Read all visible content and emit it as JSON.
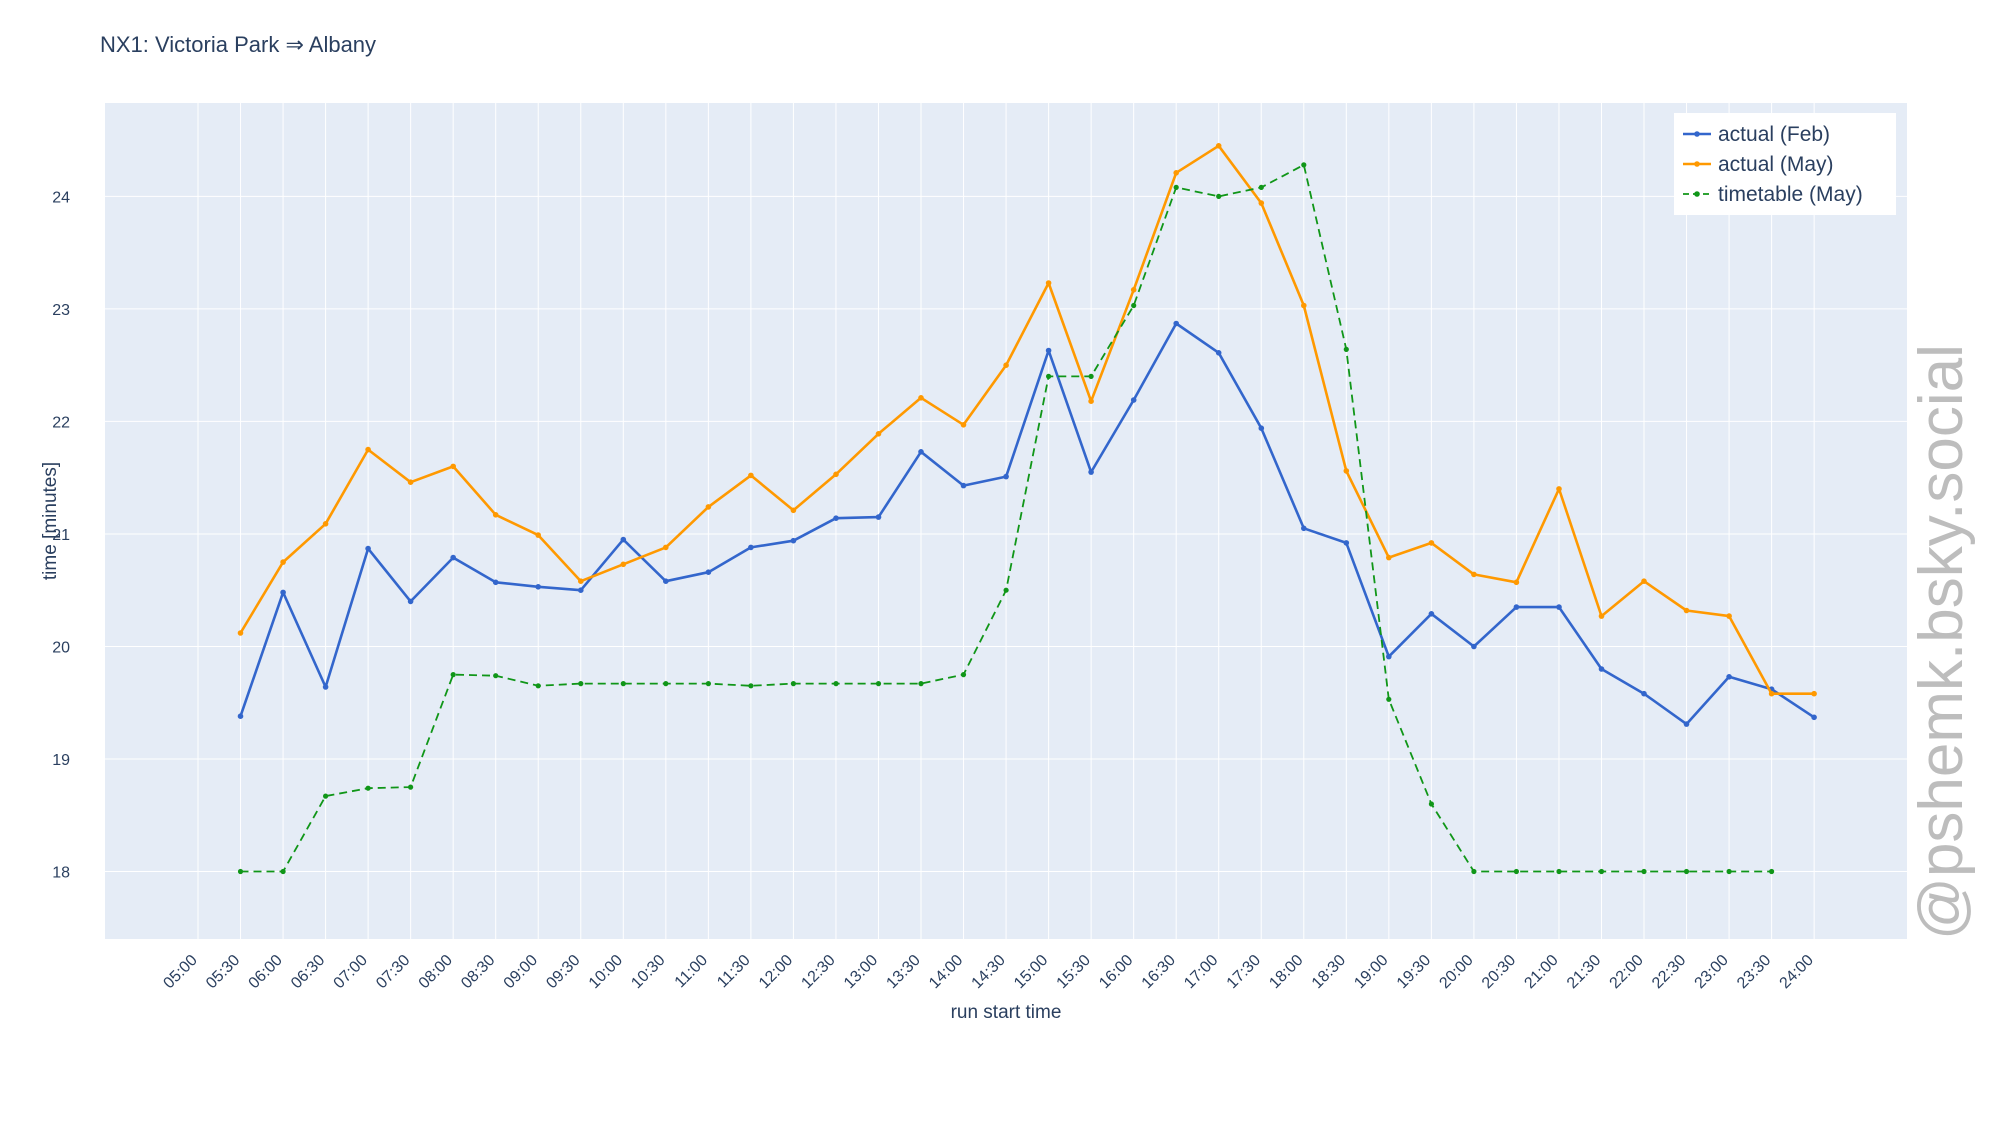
{
  "chart_data": {
    "type": "line",
    "title": "NX1: Victoria Park ⇒ Albany",
    "xlabel": "run start time",
    "ylabel": "time [minutes]",
    "ylim": [
      17.4,
      24.83
    ],
    "y_ticks": [
      18,
      19,
      20,
      21,
      22,
      23,
      24
    ],
    "grid": true,
    "legend_position": "top-right",
    "x_ticks": [
      "05:00",
      "05:30",
      "06:00",
      "06:30",
      "07:00",
      "07:30",
      "08:00",
      "08:30",
      "09:00",
      "09:30",
      "10:00",
      "10:30",
      "11:00",
      "11:30",
      "12:00",
      "12:30",
      "13:00",
      "13:30",
      "14:00",
      "14:30",
      "15:00",
      "15:30",
      "16:00",
      "16:30",
      "17:00",
      "17:30",
      "18:00",
      "18:30",
      "19:00",
      "19:30",
      "20:00",
      "20:30",
      "21:00",
      "21:30",
      "22:00",
      "22:30",
      "23:00",
      "23:30",
      "24:00"
    ],
    "series": [
      {
        "name": "actual (Feb)",
        "color": "#3366cc",
        "dash": "solid",
        "x": [
          "05:30",
          "06:00",
          "06:30",
          "07:00",
          "07:30",
          "08:00",
          "08:30",
          "09:00",
          "09:30",
          "10:00",
          "10:30",
          "11:00",
          "11:30",
          "12:00",
          "12:30",
          "13:00",
          "13:30",
          "14:00",
          "14:30",
          "15:00",
          "15:30",
          "16:00",
          "16:30",
          "17:00",
          "17:30",
          "18:00",
          "18:30",
          "19:00",
          "19:30",
          "20:00",
          "20:30",
          "21:00",
          "21:30",
          "22:00",
          "22:30",
          "23:00",
          "23:30",
          "24:00"
        ],
        "values": [
          19.38,
          20.48,
          19.64,
          20.87,
          20.4,
          20.79,
          20.57,
          20.53,
          20.5,
          20.95,
          20.58,
          20.66,
          20.88,
          20.94,
          21.14,
          21.15,
          21.73,
          21.43,
          21.51,
          22.63,
          21.55,
          22.19,
          22.87,
          22.61,
          21.94,
          21.05,
          20.92,
          19.91,
          20.29,
          20.0,
          20.35,
          20.35,
          19.8,
          19.58,
          19.31,
          19.73,
          19.62,
          19.37
        ]
      },
      {
        "name": "actual (May)",
        "color": "#ff9900",
        "dash": "solid",
        "x": [
          "05:30",
          "06:00",
          "06:30",
          "07:00",
          "07:30",
          "08:00",
          "08:30",
          "09:00",
          "09:30",
          "10:00",
          "10:30",
          "11:00",
          "11:30",
          "12:00",
          "12:30",
          "13:00",
          "13:30",
          "14:00",
          "14:30",
          "15:00",
          "15:30",
          "16:00",
          "16:30",
          "17:00",
          "17:30",
          "18:00",
          "18:30",
          "19:00",
          "19:30",
          "20:00",
          "20:30",
          "21:00",
          "21:30",
          "22:00",
          "22:30",
          "23:00",
          "23:30",
          "24:00"
        ],
        "values": [
          20.12,
          20.75,
          21.09,
          21.75,
          21.46,
          21.6,
          21.17,
          20.99,
          20.58,
          20.73,
          20.88,
          21.24,
          21.52,
          21.21,
          21.53,
          21.89,
          22.21,
          21.97,
          22.5,
          23.23,
          22.18,
          23.17,
          24.21,
          24.45,
          23.94,
          23.03,
          21.56,
          20.79,
          20.92,
          20.64,
          20.57,
          21.4,
          20.27,
          20.58,
          20.32,
          20.27,
          19.58,
          19.58
        ]
      },
      {
        "name": "timetable (May)",
        "color": "#109618",
        "dash": "dash",
        "x": [
          "05:30",
          "06:00",
          "06:30",
          "07:00",
          "07:30",
          "08:00",
          "08:30",
          "09:00",
          "09:30",
          "10:00",
          "10:30",
          "11:00",
          "11:30",
          "12:00",
          "12:30",
          "13:00",
          "13:30",
          "14:00",
          "14:30",
          "15:00",
          "15:30",
          "16:00",
          "16:30",
          "17:00",
          "17:30",
          "18:00",
          "18:30",
          "19:00",
          "19:30",
          "20:00",
          "20:30",
          "21:00",
          "21:30",
          "22:00",
          "22:30",
          "23:00",
          "23:30"
        ],
        "values": [
          18.0,
          18.0,
          18.67,
          18.74,
          18.75,
          19.75,
          19.74,
          19.65,
          19.67,
          19.67,
          19.67,
          19.67,
          19.65,
          19.67,
          19.67,
          19.67,
          19.67,
          19.75,
          20.5,
          22.4,
          22.4,
          23.03,
          24.08,
          24.0,
          24.08,
          24.28,
          22.64,
          19.53,
          18.6,
          18.0,
          18.0,
          18.0,
          18.0,
          18.0,
          18.0,
          18.0,
          18.0
        ]
      }
    ]
  },
  "watermark": "@pshemk.bsky.social"
}
